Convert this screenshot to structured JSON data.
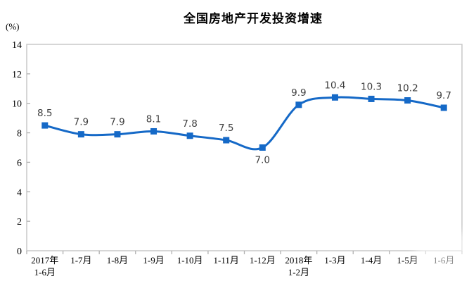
{
  "chart_data": {
    "type": "line",
    "title": "全国房地产开发投资增速",
    "unit_label": "(%)",
    "categories": [
      "2017年\n1-6月",
      "1-7月",
      "1-8月",
      "1-9月",
      "1-10月",
      "1-11月",
      "1-12月",
      "2018年\n1-2月",
      "1-3月",
      "1-4月",
      "1-5月",
      "1-6月"
    ],
    "values": [
      8.5,
      7.9,
      7.9,
      8.1,
      7.8,
      7.5,
      7.0,
      9.9,
      10.4,
      10.3,
      10.2,
      9.7
    ],
    "label_below_indices": [
      6
    ],
    "ylim": [
      0,
      14
    ],
    "ytick_step": 2,
    "grid": false,
    "legend": "none",
    "smooth": true,
    "colors": {
      "line": "#1569C7",
      "marker": "#1569C7",
      "data_label": "#3f3f3f",
      "axis_text": "#000000",
      "plot_border": "#c9c9c9",
      "tick": "#b0b0b0",
      "background": "#ffffff"
    }
  }
}
